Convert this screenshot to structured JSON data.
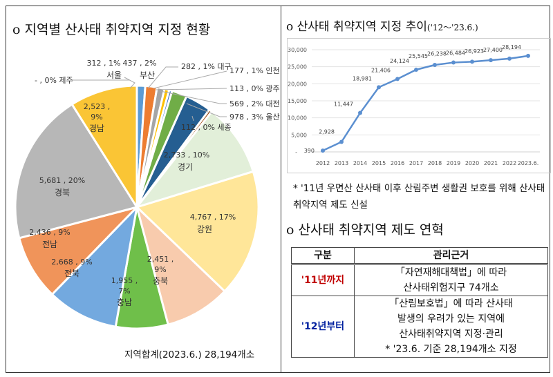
{
  "left_title": "o 지역별 산사태 취약지역 지정 현황",
  "right_title": "o 산사태 취약지역 지정 추이",
  "right_title_period": "('12～'23.6.)",
  "total_label": "지역합계(2023.6.)  28,194개소",
  "note": "* '11년 우면산 산사태 이후 산림주변 생활권 보호를 위해 산사태취약지역 제도 신설",
  "history_title": "o 산사태 취약지역 제도 연혁",
  "table": {
    "headers": [
      "구분",
      "관리근거"
    ],
    "rows": [
      {
        "period": "'11년까지",
        "lines": [
          "「자연재해대책법」에 따라",
          "산사태위험지구 74개소"
        ],
        "color": "#c00000"
      },
      {
        "period": "'12년부터",
        "lines": [
          "「산림보호법」에 따라 산사태",
          "발생의 우려가 있는 지역에",
          "산사태취약지역 지정·관리",
          "* '23.6. 기준 28,194개소 지정"
        ],
        "color": "#00209f"
      }
    ]
  },
  "chart_data": [
    {
      "type": "pie",
      "slices": [
        {
          "region": "서울",
          "value": 312,
          "label": "312 , 1%",
          "color": "#5b9bd5"
        },
        {
          "region": "부산",
          "value": 437,
          "label": "437 , 2%",
          "color": "#ed7d31"
        },
        {
          "region": "대구",
          "value": 282,
          "label": "282 , 1%",
          "color": "#a5a5a5"
        },
        {
          "region": "인천",
          "value": 177,
          "label": "177 , 1%",
          "color": "#ffc000"
        },
        {
          "region": "광주",
          "value": 113,
          "label": "113 , 0%",
          "color": "#4472c4"
        },
        {
          "region": "대전",
          "value": 569,
          "label": "569 , 2%",
          "color": "#70ad47"
        },
        {
          "region": "울산",
          "value": 978,
          "label": "978 , 3%",
          "color": "#255e91"
        },
        {
          "region": "세종",
          "value": 112,
          "label": "112 , 0%",
          "color": "#9e480e"
        },
        {
          "region": "경기",
          "value": 2733,
          "label": "2,733 , 10%",
          "color": "#e2efd9"
        },
        {
          "region": "강원",
          "value": 4767,
          "label": "4,767 , 17%",
          "color": "#ffe699"
        },
        {
          "region": "충북",
          "value": 2451,
          "label": "2,451 , 9%",
          "color": "#f8cbad"
        },
        {
          "region": "충남",
          "value": 1955,
          "label": "1,955 , 7%",
          "color": "#6fbf4a"
        },
        {
          "region": "전북",
          "value": 2668,
          "label": "2,668 , 9%",
          "color": "#73a9df"
        },
        {
          "region": "전남",
          "value": 2436,
          "label": "2,436 , 9%",
          "color": "#f0945a"
        },
        {
          "region": "경북",
          "value": 5681,
          "label": "5,681 , 20%",
          "color": "#b7b7b7"
        },
        {
          "region": "경남",
          "value": 2523,
          "label": "2,523 , 9%",
          "color": "#fac535"
        },
        {
          "region": "제주",
          "value": 0,
          "label": "- , 0%",
          "color": "#dddddd"
        }
      ]
    },
    {
      "type": "line",
      "x": [
        "2012",
        "2013",
        "2014",
        "2015",
        "2016",
        "2017",
        "2018",
        "2019",
        "2020",
        "2021",
        "2022",
        "2023.6."
      ],
      "values": [
        390,
        2928,
        11447,
        18981,
        21406,
        24124,
        25545,
        26238,
        26484,
        26923,
        27400,
        28194
      ],
      "data_labels": [
        "390",
        "2,928",
        "11,447",
        "18,981",
        "21,406",
        "24,124",
        "25,545",
        "26,238",
        "26,484",
        "26,923",
        "27,400",
        "28,194"
      ],
      "yticks": [
        "-",
        "5,000",
        "10,000",
        "15,000",
        "20,000",
        "25,000",
        "30,000"
      ],
      "ylim": [
        0,
        30000
      ],
      "grid": true,
      "color": "#5b8fd0"
    }
  ]
}
